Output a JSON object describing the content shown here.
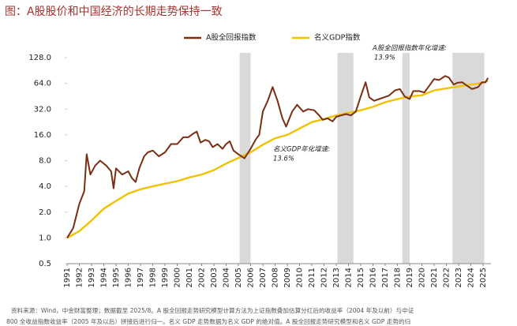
{
  "chart_data": {
    "type": "line",
    "title": "图：A股股价和中国经济的长期走势保持一致",
    "log_scale": true,
    "grid": false,
    "xlim": [
      1991,
      2025.4
    ],
    "xticks": [
      1991,
      1992,
      1993,
      1994,
      1995,
      1996,
      1997,
      1998,
      1999,
      2000,
      2001,
      2002,
      2003,
      2004,
      2005,
      2006,
      2007,
      2008,
      2009,
      2010,
      2011,
      2012,
      2013,
      2014,
      2015,
      2016,
      2017,
      2018,
      2019,
      2020,
      2021,
      2022,
      2023,
      2024,
      2025
    ],
    "ylim": [
      0.5,
      128
    ],
    "yticks": [
      0.5,
      {
        "value": 1,
        "label": "1.0"
      },
      {
        "value": 2,
        "label": "2.0"
      },
      {
        "value": 4,
        "label": "4.0"
      },
      {
        "value": 8,
        "label": "8.0"
      },
      {
        "value": 16,
        "label": "16.0"
      },
      {
        "value": 32,
        "label": "32.0"
      },
      {
        "value": 64,
        "label": "64.0"
      },
      {
        "value": 128,
        "label": "128.0"
      }
    ],
    "shade_color": "#d9d9d9",
    "shaded_periods": [
      [
        2005.1,
        2006.0
      ],
      [
        2013.1,
        2014.4
      ],
      [
        2018.4,
        2019.0
      ],
      [
        2022.5,
        2025.1
      ]
    ],
    "series": [
      {
        "name": "A股全回报指数",
        "color": "#7a2e12",
        "x": [
          1991,
          1991.5,
          1992,
          1992.4,
          1992.6,
          1992.9,
          1993.3,
          1993.7,
          1994.2,
          1994.6,
          1994.8,
          1995.0,
          1995.5,
          1996.0,
          1996.3,
          1996.6,
          1996.9,
          1997.3,
          1997.6,
          1998.0,
          1998.5,
          1999.0,
          1999.5,
          2000.0,
          2000.5,
          2000.9,
          2001.3,
          2001.6,
          2001.9,
          2002.3,
          2002.6,
          2002.9,
          2003.3,
          2003.7,
          2004.0,
          2004.3,
          2004.6,
          2005.0,
          2005.5,
          2006.0,
          2006.4,
          2006.7,
          2007.0,
          2007.4,
          2007.8,
          2008.2,
          2008.6,
          2008.9,
          2009.4,
          2009.8,
          2010.3,
          2010.7,
          2011.2,
          2011.6,
          2011.9,
          2012.3,
          2012.7,
          2013.0,
          2013.4,
          2013.8,
          2014.2,
          2014.6,
          2015.0,
          2015.4,
          2015.7,
          2016.1,
          2016.5,
          2016.9,
          2017.3,
          2017.8,
          2018.2,
          2018.6,
          2019.0,
          2019.3,
          2019.8,
          2020.2,
          2020.6,
          2021.0,
          2021.4,
          2021.9,
          2022.2,
          2022.6,
          2022.9,
          2023.3,
          2023.7,
          2024.1,
          2024.6,
          2024.9,
          2025.2,
          2025.4
        ],
        "values": [
          1.0,
          1.3,
          2.5,
          3.5,
          9.5,
          5.5,
          7,
          8,
          7,
          6,
          3.8,
          6.5,
          5.5,
          6,
          5,
          4.5,
          6.5,
          9,
          10,
          10.5,
          9,
          10,
          12.5,
          12.5,
          15,
          15,
          16.5,
          17.5,
          13,
          14,
          13.5,
          11.5,
          12.5,
          11,
          12.5,
          13.5,
          10.5,
          9.5,
          8.5,
          11,
          14,
          16,
          30,
          40,
          58,
          40,
          25,
          20,
          30,
          36,
          30,
          32,
          31,
          27,
          24,
          25,
          23,
          26,
          27,
          28,
          27,
          30,
          45,
          66,
          44,
          40,
          42,
          44,
          46,
          53,
          55,
          45,
          42,
          52,
          52,
          50,
          60,
          72,
          70,
          78,
          75,
          62,
          65,
          66,
          60,
          55,
          58,
          66,
          66,
          74
        ]
      },
      {
        "name": "名义GDP指数",
        "color": "#f2c200",
        "x": [
          1991,
          1992,
          1993,
          1994,
          1995,
          1996,
          1997,
          1998,
          1999,
          2000,
          2001,
          2002,
          2003,
          2004,
          2005,
          2006,
          2007,
          2008,
          2009,
          2010,
          2011,
          2012,
          2013,
          2014,
          2015,
          2016,
          2017,
          2018,
          2019,
          2020,
          2021,
          2022,
          2023,
          2024,
          2025,
          2025.4
        ],
        "values": [
          1.0,
          1.2,
          1.6,
          2.2,
          2.7,
          3.3,
          3.7,
          4.0,
          4.3,
          4.6,
          5.1,
          5.5,
          6.2,
          7.4,
          8.6,
          10.0,
          12.3,
          14.6,
          16,
          19,
          22.5,
          24.5,
          27,
          29,
          31,
          34,
          38.5,
          42,
          45,
          46.5,
          53,
          56,
          59,
          62,
          65,
          69
        ]
      }
    ],
    "annotations": [
      {
        "text": "A股全回报指数年化增速:",
        "value_text": "13.9%"
      },
      {
        "text": "名义GDP年化增速:",
        "value_text": "13.6%"
      }
    ],
    "source_lines": [
      "资料来源：Wind，中金财富整理；数据截至 2025/8。A 股全回报走势研究模型计算方法为上证指数叠加估算分红后的收益率（2004 年及以前）与中证",
      "800 全收益指数收益率（2005 年及以后）拼接后进行归一。名义 GDP 走势数据为名义 GDP 的绝对值。A 股全回报走势研究模型和名义 GDP 走势的归"
    ]
  }
}
